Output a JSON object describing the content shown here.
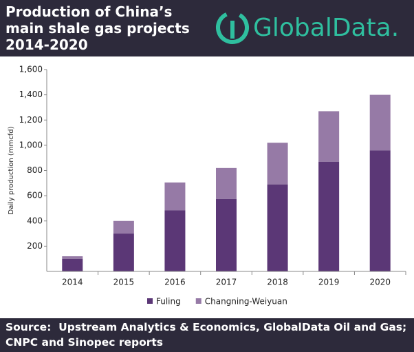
{
  "chart_data": {
    "type": "stacked_bar",
    "title": "Production of China’s main shale gas projects 2014-2020",
    "logo": "GlobalData.",
    "source": "Source:  Upstream Analytics & Economics, GlobalData Oil and Gas; CNPC and Sinopec reports",
    "y_label": "Daily production (mmcfd)",
    "categories": [
      "2014",
      "2015",
      "2016",
      "2017",
      "2018",
      "2019",
      "2020"
    ],
    "series": [
      {
        "name": "Fuling",
        "color": "#5b3776",
        "values": [
          100,
          300,
          485,
          575,
          690,
          870,
          960
        ]
      },
      {
        "name": "Changning-Weiyuan",
        "color": "#967aa6",
        "values": [
          20,
          100,
          220,
          245,
          330,
          400,
          440
        ]
      }
    ],
    "ylim": [
      0,
      1600
    ],
    "yticks": [
      200,
      400,
      600,
      800,
      {
        "value": 1000,
        "label": "1,000"
      },
      {
        "value": 1200,
        "label": "1,200"
      },
      {
        "value": 1400,
        "label": "1,400"
      },
      {
        "value": 1600,
        "label": "1,600"
      }
    ],
    "legend": "bottom"
  }
}
